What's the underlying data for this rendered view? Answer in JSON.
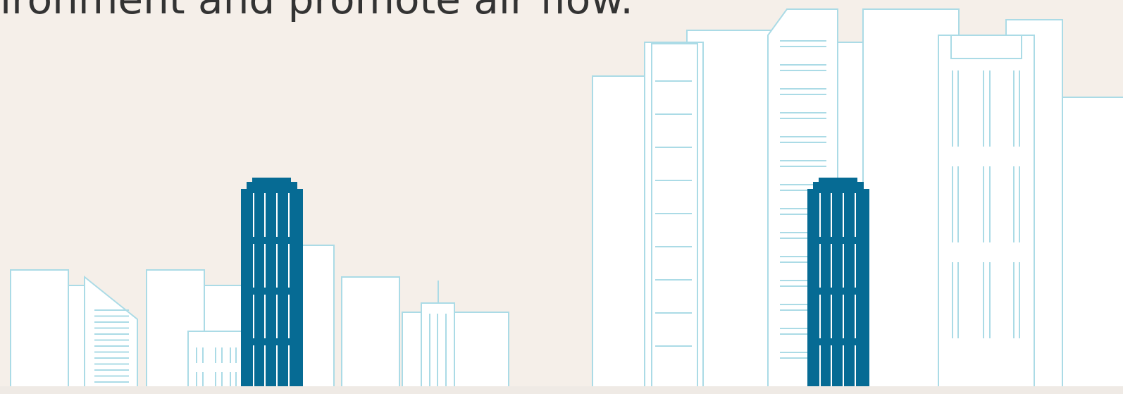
{
  "text": "ironment and promote air flow."
}
